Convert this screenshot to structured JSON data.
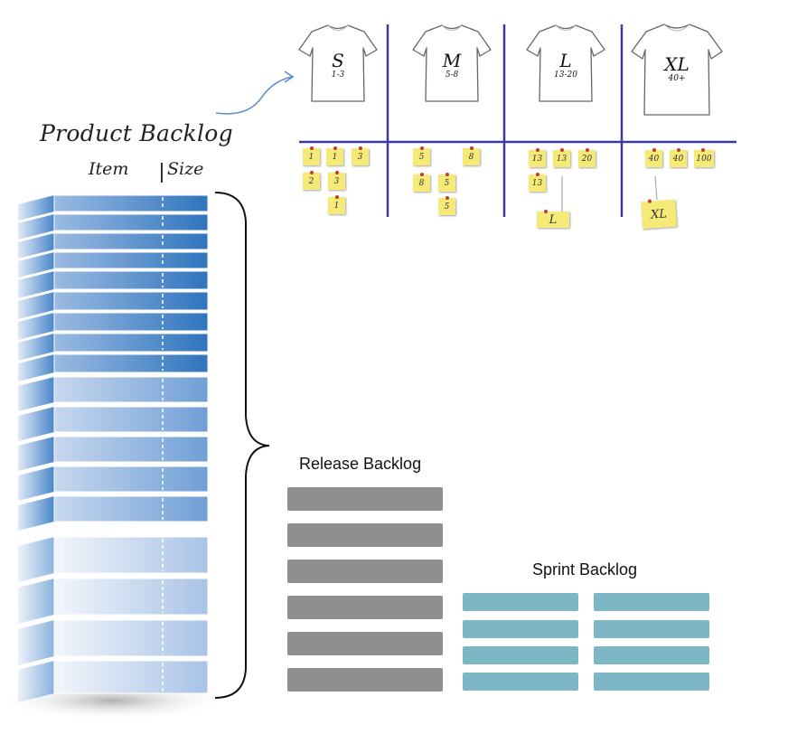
{
  "product_backlog": {
    "title": "Product Backlog",
    "col_item": "Item",
    "col_size": "Size"
  },
  "release_backlog": {
    "title": "Release Backlog"
  },
  "sprint_backlog": {
    "title": "Sprint Backlog"
  },
  "estimation_board": {
    "sizes": [
      {
        "label": "S",
        "range": "1-3"
      },
      {
        "label": "M",
        "range": "5-8"
      },
      {
        "label": "L",
        "range": "13-20"
      },
      {
        "label": "XL",
        "range": "40+"
      }
    ],
    "notes": [
      {
        "col": 0,
        "text": "1"
      },
      {
        "col": 0,
        "text": "1"
      },
      {
        "col": 0,
        "text": "3"
      },
      {
        "col": 0,
        "text": "2"
      },
      {
        "col": 0,
        "text": "3"
      },
      {
        "col": 0,
        "text": "1"
      },
      {
        "col": 1,
        "text": "5"
      },
      {
        "col": 1,
        "text": "8"
      },
      {
        "col": 1,
        "text": "8"
      },
      {
        "col": 1,
        "text": "5"
      },
      {
        "col": 1,
        "text": "5"
      },
      {
        "col": 2,
        "text": "13"
      },
      {
        "col": 2,
        "text": "13"
      },
      {
        "col": 2,
        "text": "20"
      },
      {
        "col": 2,
        "text": "13"
      },
      {
        "col": 2,
        "text": "L"
      },
      {
        "col": 3,
        "text": "40"
      },
      {
        "col": 3,
        "text": "40"
      },
      {
        "col": 3,
        "text": "100"
      },
      {
        "col": 3,
        "text": "XL"
      }
    ]
  },
  "colors": {
    "backlog_dark": "#2f74bd",
    "backlog_light": "#e3ecf7",
    "release_bar": "#8e8e91",
    "sprint_bar": "#7db7c5",
    "board_line": "#3c3a9c",
    "sticky": "#f5ea78"
  }
}
